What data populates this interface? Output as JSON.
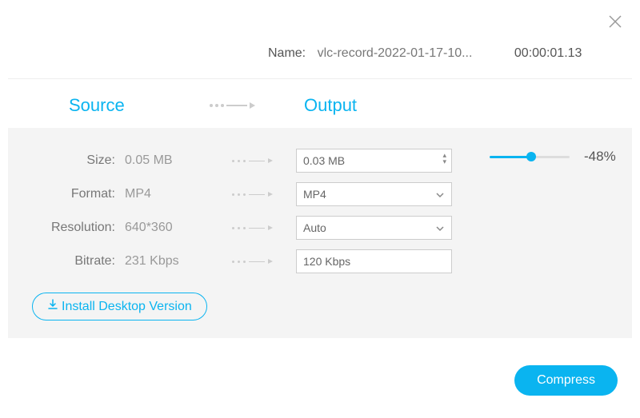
{
  "colors": {
    "accent": "#0ab4f0",
    "panel_bg": "#f4f4f4",
    "border": "#cccccc",
    "text_muted": "#999999",
    "text": "#666666"
  },
  "name": {
    "label": "Name:",
    "value": "vlc-record-2022-01-17-10...",
    "duration": "00:00:01.13"
  },
  "headers": {
    "source": "Source",
    "output": "Output"
  },
  "rows": {
    "size": {
      "label": "Size:",
      "source_value": "0.05 MB",
      "output_value": "0.03 MB",
      "slider_percent": 52,
      "percent_label": "-48%"
    },
    "format": {
      "label": "Format:",
      "source_value": "MP4",
      "output_value": "MP4"
    },
    "resolution": {
      "label": "Resolution:",
      "source_value": "640*360",
      "output_value": "Auto"
    },
    "bitrate": {
      "label": "Bitrate:",
      "source_value": "231 Kbps",
      "output_value": "120 Kbps"
    }
  },
  "buttons": {
    "install": "Install Desktop Version",
    "compress": "Compress"
  }
}
